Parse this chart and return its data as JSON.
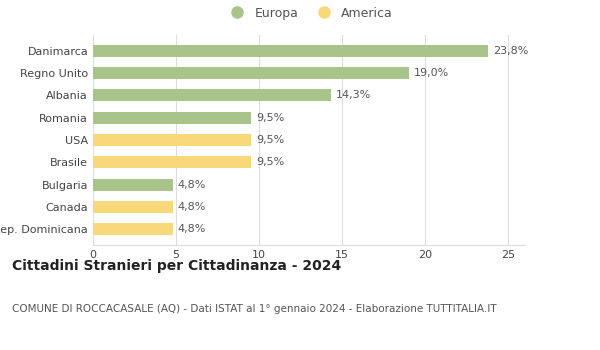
{
  "categories": [
    "Rep. Dominicana",
    "Canada",
    "Bulgaria",
    "Brasile",
    "USA",
    "Romania",
    "Albania",
    "Regno Unito",
    "Danimarca"
  ],
  "values": [
    4.8,
    4.8,
    4.8,
    9.5,
    9.5,
    9.5,
    14.3,
    19.0,
    23.8
  ],
  "labels": [
    "4,8%",
    "4,8%",
    "4,8%",
    "9,5%",
    "9,5%",
    "9,5%",
    "14,3%",
    "19,0%",
    "23,8%"
  ],
  "colors": [
    "#f9d87a",
    "#f9d87a",
    "#a8c48a",
    "#f9d87a",
    "#f9d87a",
    "#a8c48a",
    "#a8c48a",
    "#a8c48a",
    "#a8c48a"
  ],
  "europa_color": "#a8c48a",
  "america_color": "#f9d87a",
  "xlim": [
    0,
    26
  ],
  "xticks": [
    0,
    5,
    10,
    15,
    20,
    25
  ],
  "title": "Cittadini Stranieri per Cittadinanza - 2024",
  "subtitle": "COMUNE DI ROCCACASALE (AQ) - Dati ISTAT al 1° gennaio 2024 - Elaborazione TUTTITALIA.IT",
  "legend_europa": "Europa",
  "legend_america": "America",
  "background_color": "#ffffff",
  "grid_color": "#dddddd",
  "bar_height": 0.55,
  "label_fontsize": 8,
  "title_fontsize": 10,
  "subtitle_fontsize": 7.5,
  "tick_fontsize": 8,
  "legend_fontsize": 9
}
